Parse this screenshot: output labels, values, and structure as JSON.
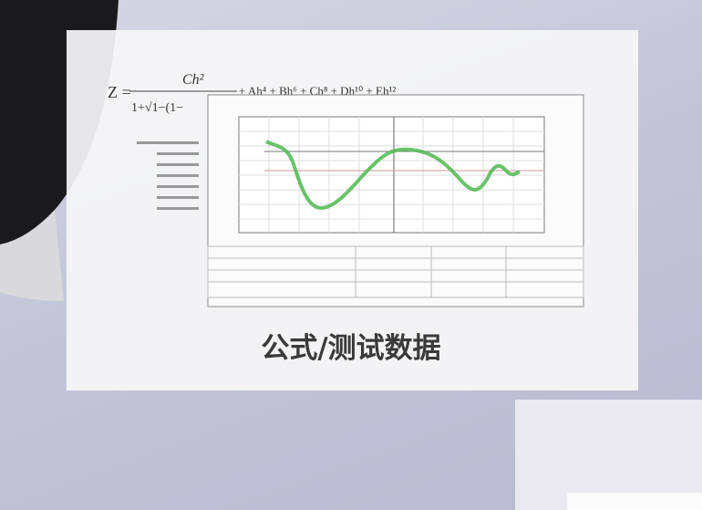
{
  "formula": {
    "lhs": "Z =",
    "numerator": "Ch²",
    "denominator": "1+√1−(1−",
    "terms": "+ Ah⁴ + Bh⁶ + Ch⁸ + Dh¹⁰ + Eh¹²"
  },
  "caption": "公式/测试数据"
}
